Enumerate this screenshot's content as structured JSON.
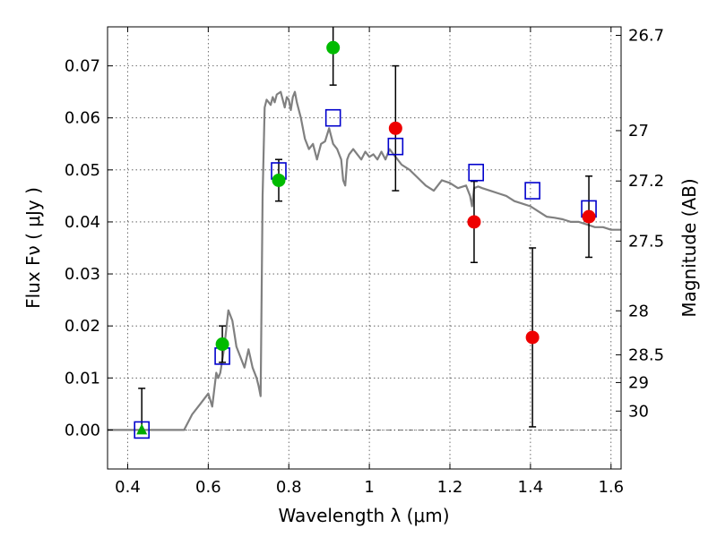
{
  "chart_data": {
    "type": "scatter",
    "title": "",
    "xlabel": "Wavelength  λ (μm)",
    "ylabel": "Flux  Fν  ( μJy )",
    "ylabel_right": "Magnitude (AB)",
    "xlim": [
      0.35,
      1.625
    ],
    "ylim": [
      -0.0075,
      0.0775
    ],
    "grid": true,
    "x_ticks": [
      {
        "value": 0.4,
        "label": "0.4"
      },
      {
        "value": 0.6,
        "label": "0.6"
      },
      {
        "value": 0.8,
        "label": "0.8"
      },
      {
        "value": 1.0,
        "label": "1"
      },
      {
        "value": 1.2,
        "label": "1.2"
      },
      {
        "value": 1.4,
        "label": "1.4"
      },
      {
        "value": 1.6,
        "label": "1.6"
      }
    ],
    "y_ticks": [
      {
        "value": 0.0,
        "label": "0.00"
      },
      {
        "value": 0.01,
        "label": "0.01"
      },
      {
        "value": 0.02,
        "label": "0.02"
      },
      {
        "value": 0.03,
        "label": "0.03"
      },
      {
        "value": 0.04,
        "label": "0.04"
      },
      {
        "value": 0.05,
        "label": "0.05"
      },
      {
        "value": 0.06,
        "label": "0.06"
      },
      {
        "value": 0.07,
        "label": "0.07"
      }
    ],
    "right_ticks": [
      {
        "mag": 26.7,
        "label": "26.7"
      },
      {
        "mag": 27.0,
        "label": "27"
      },
      {
        "mag": 27.2,
        "label": "27.2"
      },
      {
        "mag": 27.5,
        "label": "27.5"
      },
      {
        "mag": 28.0,
        "label": "28"
      },
      {
        "mag": 28.5,
        "label": "28.5"
      },
      {
        "mag": 29.0,
        "label": "29"
      },
      {
        "mag": 30.0,
        "label": "30"
      }
    ],
    "series": [
      {
        "kind": "model_spectrum",
        "color": "#808080",
        "x": [
          0.35,
          0.54,
          0.56,
          0.58,
          0.6,
          0.61,
          0.62,
          0.625,
          0.63,
          0.64,
          0.65,
          0.66,
          0.67,
          0.68,
          0.69,
          0.7,
          0.71,
          0.72,
          0.725,
          0.73,
          0.735,
          0.74,
          0.745,
          0.75,
          0.755,
          0.76,
          0.765,
          0.77,
          0.78,
          0.79,
          0.795,
          0.8,
          0.805,
          0.81,
          0.815,
          0.82,
          0.83,
          0.84,
          0.85,
          0.86,
          0.87,
          0.875,
          0.88,
          0.89,
          0.9,
          0.91,
          0.92,
          0.93,
          0.935,
          0.94,
          0.945,
          0.95,
          0.96,
          0.97,
          0.98,
          0.99,
          1.0,
          1.01,
          1.02,
          1.03,
          1.04,
          1.05,
          1.06,
          1.08,
          1.1,
          1.12,
          1.14,
          1.16,
          1.18,
          1.2,
          1.22,
          1.24,
          1.25,
          1.255,
          1.26,
          1.27,
          1.28,
          1.3,
          1.32,
          1.34,
          1.36,
          1.38,
          1.4,
          1.42,
          1.44,
          1.46,
          1.48,
          1.5,
          1.52,
          1.54,
          1.56,
          1.58,
          1.6,
          1.625
        ],
        "values": [
          0.0,
          0.0,
          0.003,
          0.005,
          0.007,
          0.0045,
          0.011,
          0.01,
          0.011,
          0.016,
          0.023,
          0.021,
          0.016,
          0.014,
          0.012,
          0.0155,
          0.012,
          0.01,
          0.0085,
          0.0065,
          0.045,
          0.062,
          0.0635,
          0.063,
          0.0625,
          0.064,
          0.063,
          0.0645,
          0.065,
          0.062,
          0.064,
          0.0635,
          0.0615,
          0.064,
          0.065,
          0.063,
          0.06,
          0.056,
          0.054,
          0.055,
          0.052,
          0.0535,
          0.055,
          0.0555,
          0.058,
          0.055,
          0.054,
          0.052,
          0.048,
          0.047,
          0.052,
          0.053,
          0.054,
          0.053,
          0.052,
          0.0535,
          0.0525,
          0.053,
          0.052,
          0.0535,
          0.052,
          0.054,
          0.053,
          0.051,
          0.05,
          0.0485,
          0.047,
          0.046,
          0.048,
          0.0475,
          0.0465,
          0.047,
          0.045,
          0.043,
          0.0465,
          0.0468,
          0.0465,
          0.046,
          0.0455,
          0.045,
          0.044,
          0.0435,
          0.043,
          0.042,
          0.041,
          0.0408,
          0.0405,
          0.04,
          0.04,
          0.0395,
          0.039,
          0.039,
          0.0385,
          0.0385
        ]
      },
      {
        "kind": "model_band_flux",
        "marker": "open-square",
        "color": "#0000cc",
        "x": [
          0.435,
          0.635,
          0.775,
          0.91,
          1.065,
          1.265,
          1.405,
          1.545
        ],
        "values": [
          0.0,
          0.0142,
          0.0498,
          0.06,
          0.0545,
          0.0495,
          0.046,
          0.0425
        ]
      },
      {
        "kind": "observed_flux",
        "marker": "circle",
        "color": "#00bb00",
        "x": [
          0.635,
          0.775,
          0.91
        ],
        "values": [
          0.0165,
          0.048,
          0.0735
        ],
        "err": [
          0.0035,
          0.004,
          0.0072
        ]
      },
      {
        "kind": "observed_flux",
        "marker": "circle",
        "color": "#ee0000",
        "x": [
          1.065,
          1.26,
          1.405,
          1.545
        ],
        "values": [
          0.058,
          0.04,
          0.0178,
          0.041
        ],
        "err": [
          0.012,
          0.0078,
          0.0172,
          0.0078
        ]
      },
      {
        "kind": "upper_limit",
        "marker": "triangle",
        "color": "#00aa00",
        "x": [
          0.435
        ],
        "values": [
          0.0
        ],
        "err_upper": [
          0.008
        ]
      }
    ]
  }
}
